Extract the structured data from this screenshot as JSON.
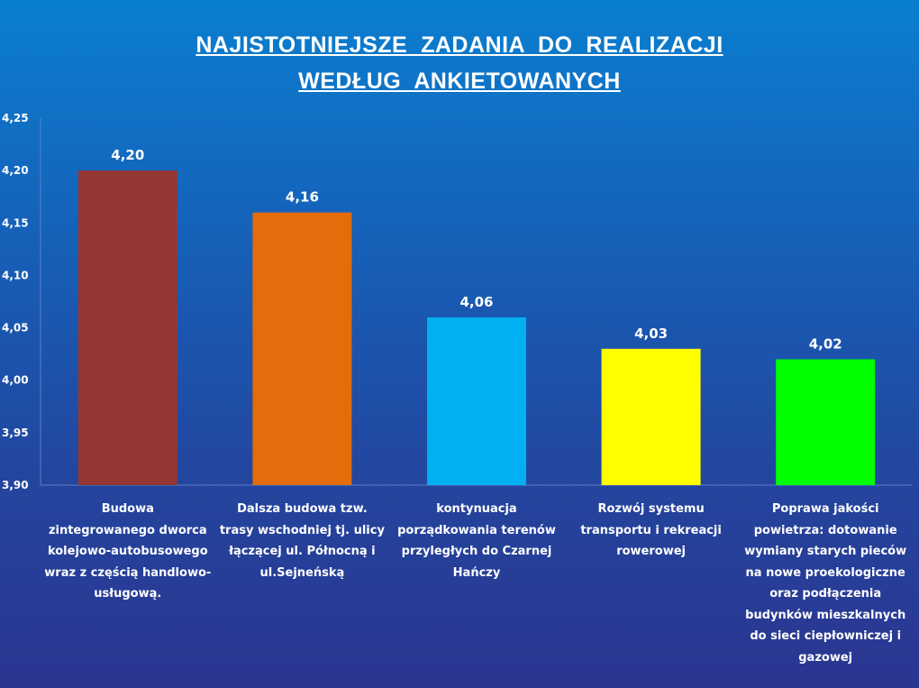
{
  "title_line1": "NAJISTOTNIEJSZE  ZADANIA  DO  REALIZACJI",
  "title_line2": "WEDŁUG  ANKIETOWANYCH",
  "chart_data": {
    "type": "bar",
    "title": "NAJISTOTNIEJSZE  ZADANIA  DO  REALIZACJI WEDŁUG  ANKIETOWANYCH",
    "xlabel": "",
    "ylabel": "",
    "ylim": [
      3.9,
      4.25
    ],
    "yticks": [
      "3,90",
      "3,95",
      "4,00",
      "4,05",
      "4,10",
      "4,15",
      "4,20",
      "4,25"
    ],
    "grid": false,
    "legend": "none",
    "categories": [
      [
        "Budowa",
        "zintegrowanego dworca",
        "kolejowo-autobusowego",
        "wraz z częścią handlowo-",
        "usługową."
      ],
      [
        "Dalsza budowa tzw.",
        "trasy wschodniej tj. ulicy",
        "łączącej ul. Północną i",
        "ul.Sejneńską"
      ],
      [
        "kontynuacja",
        "porządkowania terenów",
        "przyległych do Czarnej",
        "Hańczy"
      ],
      [
        "Rozwój systemu",
        "transportu i rekreacji",
        "rowerowej"
      ],
      [
        "Poprawa jakości",
        "powietrza: dotowanie",
        "wymiany starych pieców",
        "na nowe proekologiczne",
        "oraz podłączenia",
        "budynków mieszkalnych",
        "do sieci ciepłowniczej i",
        "gazowej"
      ]
    ],
    "values": [
      4.2,
      4.16,
      4.06,
      4.03,
      4.02
    ],
    "value_labels": [
      "4,20",
      "4,16",
      "4,06",
      "4,03",
      "4,02"
    ],
    "colors": [
      "#953735",
      "#e46c0a",
      "#00b0f0",
      "#ffff00",
      "#00ff00"
    ]
  }
}
